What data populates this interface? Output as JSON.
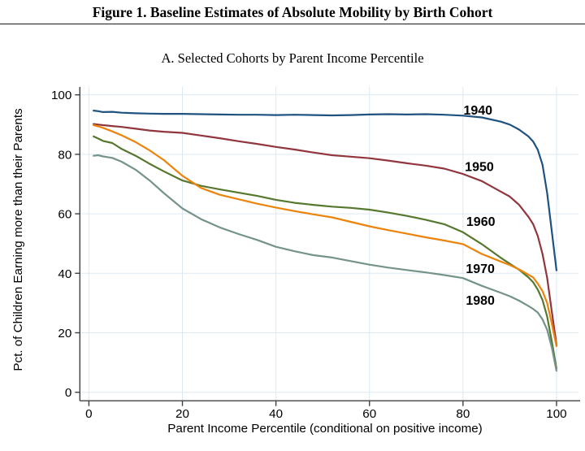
{
  "figure": {
    "title": "Figure 1. Baseline Estimates of Absolute Mobility by Birth Cohort",
    "subtitle": "A. Selected Cohorts by Parent Income Percentile"
  },
  "chart_data": {
    "type": "line",
    "title": "A. Selected Cohorts by Parent Income Percentile",
    "xlabel": "Parent Income Percentile (conditional on positive income)",
    "ylabel": "Pct. of Children Earning more than their Parents",
    "xlim": [
      0,
      100
    ],
    "ylim": [
      0,
      100
    ],
    "x_ticks": [
      0,
      20,
      40,
      60,
      80,
      100
    ],
    "y_ticks": [
      0,
      20,
      40,
      60,
      80,
      100
    ],
    "grid": true,
    "grid_color": "#dde9f2",
    "axis_color": "#404040",
    "legend_position": "inline-labels",
    "x": [
      1,
      2,
      3,
      5,
      7,
      10,
      13,
      16,
      20,
      24,
      28,
      32,
      36,
      40,
      44,
      48,
      52,
      56,
      60,
      64,
      68,
      72,
      76,
      80,
      84,
      88,
      90,
      92,
      94,
      95,
      96,
      97,
      98,
      99,
      100
    ],
    "series": [
      {
        "name": "1940",
        "color": "#1f527f",
        "label_at": {
          "x": 83.2,
          "y": 94.8
        },
        "values": [
          94.7,
          94.5,
          94.2,
          94.3,
          94.0,
          93.8,
          93.7,
          93.6,
          93.6,
          93.5,
          93.4,
          93.3,
          93.3,
          93.2,
          93.3,
          93.2,
          93.1,
          93.2,
          93.4,
          93.5,
          93.4,
          93.5,
          93.3,
          93.0,
          92.4,
          91.0,
          90.0,
          88.3,
          86.0,
          84.3,
          81.5,
          76.5,
          67.0,
          54.0,
          41.0
        ]
      },
      {
        "name": "1950",
        "color": "#92363d",
        "label_at": {
          "x": 83.5,
          "y": 75.9
        },
        "values": [
          90.2,
          90.0,
          89.8,
          89.5,
          89.2,
          88.6,
          88.0,
          87.6,
          87.2,
          86.3,
          85.4,
          84.4,
          83.5,
          82.5,
          81.6,
          80.6,
          79.7,
          79.2,
          78.7,
          77.9,
          77.0,
          76.2,
          75.2,
          73.4,
          71.0,
          67.5,
          65.8,
          63.0,
          59.0,
          56.5,
          52.5,
          46.5,
          38.5,
          27.0,
          16.0
        ]
      },
      {
        "name": "1960",
        "color": "#56782e",
        "label_at": {
          "x": 83.8,
          "y": 57.5
        },
        "values": [
          86.0,
          85.3,
          84.5,
          83.8,
          81.8,
          79.5,
          76.8,
          74.3,
          71.2,
          69.4,
          68.2,
          67.1,
          66.0,
          64.7,
          63.7,
          63.0,
          62.4,
          62.0,
          61.4,
          60.4,
          59.3,
          58.0,
          56.5,
          53.8,
          49.8,
          45.3,
          43.2,
          41.2,
          38.6,
          37.0,
          34.5,
          31.0,
          25.5,
          17.0,
          8.0
        ]
      },
      {
        "name": "1970",
        "color": "#ed830b",
        "label_at": {
          "x": 83.7,
          "y": 41.6
        },
        "values": [
          89.8,
          89.4,
          88.9,
          87.7,
          86.4,
          84.1,
          81.3,
          78.1,
          72.8,
          68.7,
          66.4,
          64.9,
          63.4,
          62.1,
          60.9,
          59.8,
          58.8,
          57.3,
          55.8,
          54.5,
          53.3,
          52.1,
          51.0,
          49.8,
          46.5,
          44.0,
          42.8,
          41.3,
          39.5,
          38.6,
          36.5,
          34.0,
          30.0,
          23.0,
          15.5
        ]
      },
      {
        "name": "1980",
        "color": "#74948a",
        "label_at": {
          "x": 83.7,
          "y": 30.9
        },
        "values": [
          79.5,
          79.7,
          79.3,
          78.8,
          77.5,
          74.8,
          71.2,
          67.0,
          61.8,
          58.2,
          55.4,
          53.2,
          51.2,
          48.9,
          47.4,
          46.1,
          45.3,
          44.1,
          42.9,
          41.9,
          41.1,
          40.3,
          39.4,
          38.4,
          35.8,
          33.5,
          32.3,
          30.8,
          29.0,
          28.0,
          26.8,
          24.5,
          21.0,
          15.0,
          7.2
        ]
      }
    ]
  }
}
